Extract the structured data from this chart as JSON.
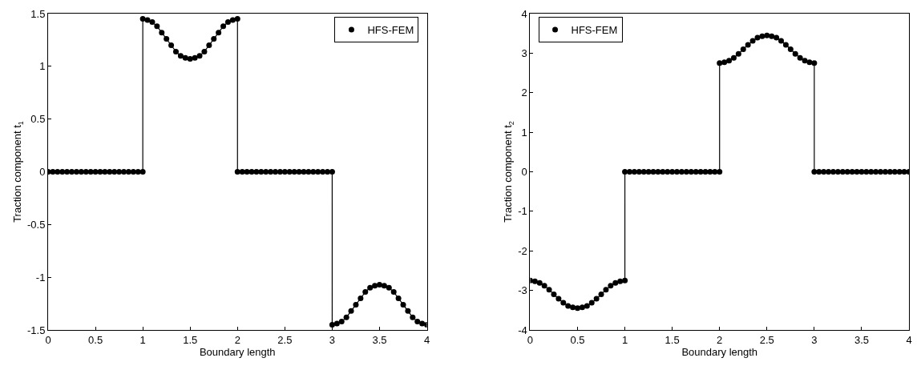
{
  "chart_data": [
    {
      "type": "line",
      "xlabel": "Boundary length",
      "ylabel": "Traction component t$_{1}$",
      "xlim": [
        0,
        4
      ],
      "xticks": [
        0,
        0.5,
        1,
        1.5,
        2,
        2.5,
        3,
        3.5,
        4
      ],
      "ylim": [
        -1.5,
        1.5
      ],
      "yticks": [
        -1.5,
        -1,
        -0.5,
        0,
        0.5,
        1,
        1.5
      ],
      "legend": "top right",
      "x": [
        0,
        0.05,
        0.1,
        0.15,
        0.2,
        0.25,
        0.3,
        0.35,
        0.4,
        0.45,
        0.5,
        0.55,
        0.6,
        0.65,
        0.7,
        0.75,
        0.8,
        0.85,
        0.9,
        0.95,
        1,
        1,
        1.05,
        1.1,
        1.15,
        1.2,
        1.25,
        1.3,
        1.35,
        1.4,
        1.45,
        1.5,
        1.55,
        1.6,
        1.65,
        1.7,
        1.75,
        1.8,
        1.85,
        1.9,
        1.95,
        2,
        2,
        2.05,
        2.1,
        2.15,
        2.2,
        2.25,
        2.3,
        2.35,
        2.4,
        2.45,
        2.5,
        2.55,
        2.6,
        2.65,
        2.7,
        2.75,
        2.8,
        2.85,
        2.9,
        2.95,
        3,
        3,
        3.05,
        3.1,
        3.15,
        3.2,
        3.25,
        3.3,
        3.35,
        3.4,
        3.45,
        3.5,
        3.55,
        3.6,
        3.65,
        3.7,
        3.75,
        3.8,
        3.85,
        3.9,
        3.95,
        4
      ],
      "series": [
        {
          "type": "line",
          "color": "#000000",
          "marker": "none",
          "line_style": "solid",
          "values": [
            0,
            0,
            0,
            0,
            0,
            0,
            0,
            0,
            0,
            0,
            0,
            0,
            0,
            0,
            0,
            0,
            0,
            0,
            0,
            0,
            0,
            1.45,
            1.44,
            1.42,
            1.38,
            1.32,
            1.26,
            1.2,
            1.14,
            1.1,
            1.08,
            1.07,
            1.08,
            1.1,
            1.14,
            1.2,
            1.26,
            1.32,
            1.38,
            1.42,
            1.44,
            1.45,
            0,
            0,
            0,
            0,
            0,
            0,
            0,
            0,
            0,
            0,
            0,
            0,
            0,
            0,
            0,
            0,
            0,
            0,
            0,
            0,
            0,
            -1.45,
            -1.44,
            -1.42,
            -1.38,
            -1.32,
            -1.26,
            -1.2,
            -1.14,
            -1.1,
            -1.08,
            -1.07,
            -1.08,
            -1.1,
            -1.14,
            -1.2,
            -1.26,
            -1.32,
            -1.38,
            -1.42,
            -1.44,
            -1.45
          ]
        },
        {
          "type": "scatter",
          "name": "HFS-FEM",
          "color": "#000000",
          "marker": "circle",
          "values": [
            0,
            0,
            0,
            0,
            0,
            0,
            0,
            0,
            0,
            0,
            0,
            0,
            0,
            0,
            0,
            0,
            0,
            0,
            0,
            0,
            0,
            1.45,
            1.44,
            1.42,
            1.38,
            1.32,
            1.26,
            1.2,
            1.14,
            1.1,
            1.08,
            1.07,
            1.08,
            1.1,
            1.14,
            1.2,
            1.26,
            1.32,
            1.38,
            1.42,
            1.44,
            1.45,
            0,
            0,
            0,
            0,
            0,
            0,
            0,
            0,
            0,
            0,
            0,
            0,
            0,
            0,
            0,
            0,
            0,
            0,
            0,
            0,
            0,
            -1.45,
            -1.44,
            -1.42,
            -1.38,
            -1.32,
            -1.26,
            -1.2,
            -1.14,
            -1.1,
            -1.08,
            -1.07,
            -1.08,
            -1.1,
            -1.14,
            -1.2,
            -1.26,
            -1.32,
            -1.38,
            -1.42,
            -1.44,
            -1.45
          ]
        }
      ]
    },
    {
      "type": "line",
      "xlabel": "Boundary length",
      "ylabel": "Traction component t$_{2}$",
      "xlim": [
        0,
        4
      ],
      "xticks": [
        0,
        0.5,
        1,
        1.5,
        2,
        2.5,
        3,
        3.5,
        4
      ],
      "ylim": [
        -4,
        4
      ],
      "yticks": [
        -4,
        -3,
        -2,
        -1,
        0,
        1,
        2,
        3,
        4
      ],
      "legend": "top left",
      "x": [
        0,
        0.05,
        0.1,
        0.15,
        0.2,
        0.25,
        0.3,
        0.35,
        0.4,
        0.45,
        0.5,
        0.55,
        0.6,
        0.65,
        0.7,
        0.75,
        0.8,
        0.85,
        0.9,
        0.95,
        1,
        1,
        1.05,
        1.1,
        1.15,
        1.2,
        1.25,
        1.3,
        1.35,
        1.4,
        1.45,
        1.5,
        1.55,
        1.6,
        1.65,
        1.7,
        1.75,
        1.8,
        1.85,
        1.9,
        1.95,
        2,
        2,
        2.05,
        2.1,
        2.15,
        2.2,
        2.25,
        2.3,
        2.35,
        2.4,
        2.45,
        2.5,
        2.55,
        2.6,
        2.65,
        2.7,
        2.75,
        2.8,
        2.85,
        2.9,
        2.95,
        3,
        3,
        3.05,
        3.1,
        3.15,
        3.2,
        3.25,
        3.3,
        3.35,
        3.4,
        3.45,
        3.5,
        3.55,
        3.6,
        3.65,
        3.7,
        3.75,
        3.8,
        3.85,
        3.9,
        3.95,
        4
      ],
      "series": [
        {
          "type": "line",
          "color": "#000000",
          "marker": "none",
          "line_style": "solid",
          "values": [
            -2.75,
            -2.77,
            -2.81,
            -2.88,
            -2.98,
            -3.1,
            -3.21,
            -3.31,
            -3.39,
            -3.43,
            -3.45,
            -3.43,
            -3.39,
            -3.31,
            -3.21,
            -3.1,
            -2.98,
            -2.88,
            -2.81,
            -2.77,
            -2.75,
            0,
            0,
            0,
            0,
            0,
            0,
            0,
            0,
            0,
            0,
            0,
            0,
            0,
            0,
            0,
            0,
            0,
            0,
            0,
            0,
            0,
            2.75,
            2.77,
            2.81,
            2.88,
            2.98,
            3.1,
            3.21,
            3.31,
            3.39,
            3.43,
            3.45,
            3.43,
            3.39,
            3.31,
            3.21,
            3.1,
            2.98,
            2.88,
            2.81,
            2.77,
            2.75,
            0,
            0,
            0,
            0,
            0,
            0,
            0,
            0,
            0,
            0,
            0,
            0,
            0,
            0,
            0,
            0,
            0,
            0,
            0,
            0,
            0
          ]
        },
        {
          "type": "scatter",
          "name": "HFS-FEM",
          "color": "#000000",
          "marker": "circle",
          "values": [
            -2.75,
            -2.77,
            -2.81,
            -2.88,
            -2.98,
            -3.1,
            -3.21,
            -3.31,
            -3.39,
            -3.43,
            -3.45,
            -3.43,
            -3.39,
            -3.31,
            -3.21,
            -3.1,
            -2.98,
            -2.88,
            -2.81,
            -2.77,
            -2.75,
            0,
            0,
            0,
            0,
            0,
            0,
            0,
            0,
            0,
            0,
            0,
            0,
            0,
            0,
            0,
            0,
            0,
            0,
            0,
            0,
            0,
            2.75,
            2.77,
            2.81,
            2.88,
            2.98,
            3.1,
            3.21,
            3.31,
            3.39,
            3.43,
            3.45,
            3.43,
            3.39,
            3.31,
            3.21,
            3.1,
            2.98,
            2.88,
            2.81,
            2.77,
            2.75,
            0,
            0,
            0,
            0,
            0,
            0,
            0,
            0,
            0,
            0,
            0,
            0,
            0,
            0,
            0,
            0,
            0,
            0,
            0,
            0,
            0
          ]
        }
      ]
    }
  ]
}
